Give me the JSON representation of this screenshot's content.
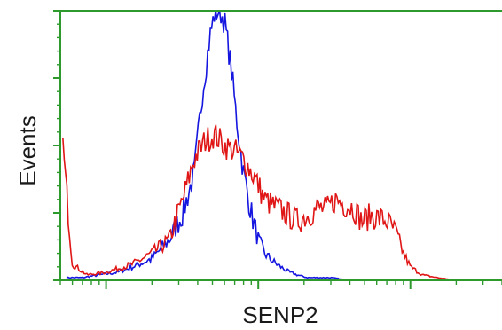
{
  "chart_data": {
    "type": "line",
    "title": "",
    "xlabel": "SENP2",
    "ylabel": "Events",
    "x_scale": "log",
    "xlim": [
      0.5,
      400
    ],
    "ylim": [
      0,
      100
    ],
    "grid": false,
    "legend": "none",
    "colors": {
      "axis": "#2e9a2e",
      "frame": "#2e9a2e",
      "plot_bg": "#ffffff"
    },
    "series": [
      {
        "color": "#1515e0",
        "x": [
          0.55,
          0.7,
          0.9,
          1.2,
          1.5,
          2.0,
          2.6,
          3.2,
          3.8,
          4.3,
          4.8,
          5.2,
          5.6,
          6.0,
          6.6,
          7.2,
          8.0,
          9.0,
          10.0,
          11.0,
          12.5,
          14.0,
          16.0,
          18.0,
          21.0,
          25.0,
          30.0,
          40.0,
          60.0,
          100.0,
          200.0,
          400.0
        ],
        "y": [
          1,
          1,
          2,
          3,
          5,
          8,
          15,
          25,
          40,
          70,
          90,
          100,
          100,
          96,
          80,
          60,
          40,
          25,
          15,
          10,
          7,
          5,
          3,
          2,
          1,
          1,
          1,
          0,
          0,
          0,
          0,
          0
        ]
      },
      {
        "color": "#e01515",
        "x": [
          0.52,
          0.6,
          0.75,
          1.0,
          1.5,
          2.0,
          2.6,
          3.2,
          3.8,
          4.5,
          5.2,
          6.0,
          7.0,
          8.0,
          9.5,
          11.0,
          13.0,
          15.0,
          18.0,
          21.0,
          25.0,
          28.0,
          32.0,
          37.0,
          42.0,
          48.0,
          55.0,
          62.0,
          70.0,
          80.0,
          90.0,
          100.0,
          120.0,
          150.0,
          200.0,
          300.0,
          400.0
        ],
        "y": [
          50,
          6,
          2,
          3,
          6,
          10,
          15,
          30,
          45,
          52,
          54,
          50,
          48,
          45,
          38,
          30,
          27,
          25,
          22,
          24,
          27,
          26,
          30,
          28,
          27,
          22,
          24,
          23,
          22,
          18,
          10,
          5,
          2,
          1,
          0,
          0,
          0
        ]
      }
    ]
  }
}
